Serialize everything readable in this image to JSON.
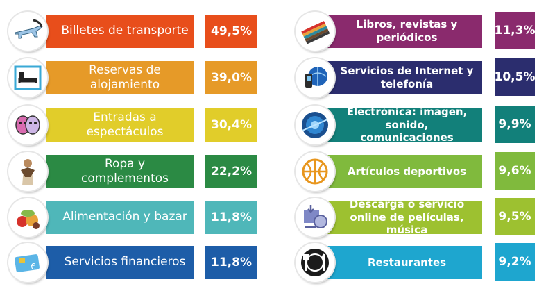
{
  "chart_data": {
    "type": "bar",
    "unit": "%",
    "items": [
      {
        "label": "Billetes de transporte",
        "value": "49,5%",
        "color": "#e84e1b",
        "icon": "airplane-icon"
      },
      {
        "label": "Reservas de alojamiento",
        "value": "39,0%",
        "color": "#e69a28",
        "icon": "bed-icon"
      },
      {
        "label": "Entradas a espectáculos",
        "value": "30,4%",
        "color": "#e1cd2a",
        "icon": "theater-masks-icon"
      },
      {
        "label": "Ropa y complementos",
        "value": "22,2%",
        "color": "#2b8a44",
        "icon": "fashion-icon"
      },
      {
        "label": "Alimentación y bazar",
        "value": "11,8%",
        "color": "#4fb7b9",
        "icon": "food-icon"
      },
      {
        "label": "Servicios financieros",
        "value": "11,8%",
        "color": "#1d5da8",
        "icon": "credit-card-icon"
      },
      {
        "label": "Libros, revistas y periódicos",
        "value": "11,3%",
        "color": "#8a2a6d",
        "icon": "books-icon"
      },
      {
        "label": "Servicios de Internet y telefonía",
        "value": "10,5%",
        "color": "#2b2d6e",
        "icon": "phone-globe-icon"
      },
      {
        "label": "Electrónica: imagen, sonido, comunicaciones",
        "value": "9,9%",
        "color": "#12807a",
        "icon": "electronics-icon"
      },
      {
        "label": "Artículos deportivos",
        "value": "9,6%",
        "color": "#80ba3d",
        "icon": "sports-ball-icon"
      },
      {
        "label": "Descarga o servicio online de películas, música",
        "value": "9,5%",
        "color": "#9dc130",
        "icon": "download-media-icon"
      },
      {
        "label": "Restaurantes",
        "value": "9,2%",
        "color": "#1ea6cf",
        "icon": "restaurant-icon"
      }
    ]
  }
}
